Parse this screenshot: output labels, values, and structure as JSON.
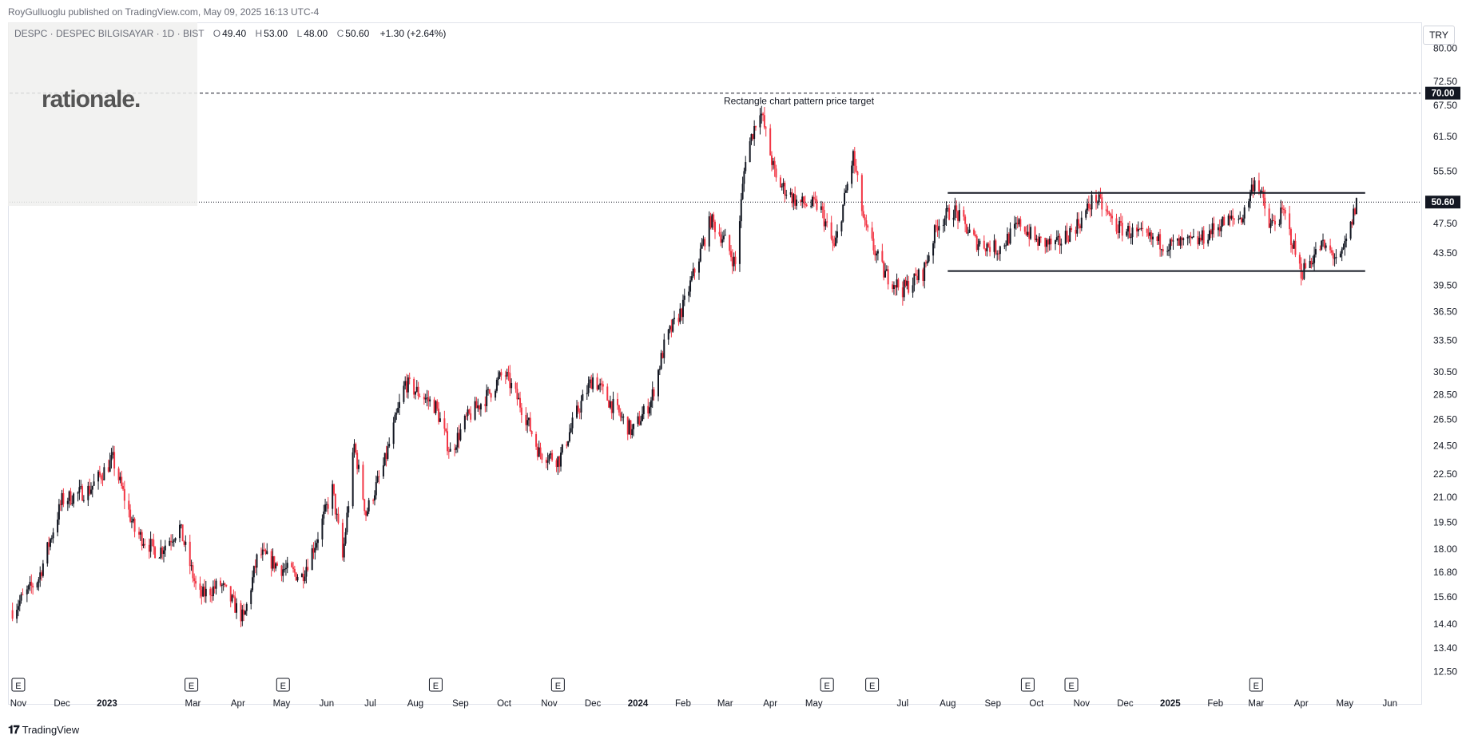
{
  "header": {
    "published": "RoyGulluoglu published on TradingView.com, May 09, 2025 16:13 UTC-4"
  },
  "legend": {
    "symbol": "DESPC · DESPEC BILGISAYAR · 1D · BIST",
    "open_label": "O",
    "open": "49.40",
    "high_label": "H",
    "high": "53.00",
    "low_label": "L",
    "low": "48.00",
    "close_label": "C",
    "close": "50.60",
    "change": "+1.30 (+2.64%)"
  },
  "watermark": {
    "logo_text": "rationale."
  },
  "currency": "TRY",
  "footer": {
    "brand": "TradingView",
    "icon": "tradingview-logo-icon"
  },
  "colors": {
    "up": "#131722",
    "down": "#f23645",
    "grid_line": "#131722",
    "price_tag": "#131722"
  },
  "chart_data": {
    "type": "candlestick",
    "scale": "log",
    "y_ticks": [
      80.0,
      72.5,
      67.5,
      61.5,
      55.5,
      50.6,
      47.5,
      43.5,
      39.5,
      36.5,
      33.5,
      30.5,
      28.5,
      26.5,
      24.5,
      22.5,
      21.0,
      19.5,
      18.0,
      16.8,
      15.6,
      14.4,
      13.4,
      12.5
    ],
    "y_tick_labels": [
      "80.00",
      "72.50",
      "67.50",
      "61.50",
      "55.50",
      "50.60",
      "47.50",
      "43.50",
      "39.50",
      "36.50",
      "33.50",
      "30.50",
      "28.50",
      "26.50",
      "24.50",
      "22.50",
      "21.00",
      "19.50",
      "18.00",
      "16.80",
      "15.60",
      "14.40",
      "13.40",
      "12.50"
    ],
    "x_labels": [
      {
        "label": "Nov",
        "date": "2022-11-01",
        "bold": false
      },
      {
        "label": "Dec",
        "date": "2022-12-01",
        "bold": false
      },
      {
        "label": "2023",
        "date": "2023-01-01",
        "bold": true
      },
      {
        "label": "Mar",
        "date": "2023-03-01",
        "bold": false
      },
      {
        "label": "Apr",
        "date": "2023-04-01",
        "bold": false
      },
      {
        "label": "May",
        "date": "2023-05-01",
        "bold": false
      },
      {
        "label": "Jun",
        "date": "2023-06-01",
        "bold": false
      },
      {
        "label": "Jul",
        "date": "2023-07-01",
        "bold": false
      },
      {
        "label": "Aug",
        "date": "2023-08-01",
        "bold": false
      },
      {
        "label": "Sep",
        "date": "2023-09-01",
        "bold": false
      },
      {
        "label": "Oct",
        "date": "2023-10-01",
        "bold": false
      },
      {
        "label": "Nov",
        "date": "2023-11-01",
        "bold": false
      },
      {
        "label": "Dec",
        "date": "2023-12-01",
        "bold": false
      },
      {
        "label": "2024",
        "date": "2024-01-01",
        "bold": true
      },
      {
        "label": "Feb",
        "date": "2024-02-01",
        "bold": false
      },
      {
        "label": "Mar",
        "date": "2024-03-01",
        "bold": false
      },
      {
        "label": "Apr",
        "date": "2024-04-01",
        "bold": false
      },
      {
        "label": "May",
        "date": "2024-05-01",
        "bold": false
      },
      {
        "label": "Jul",
        "date": "2024-07-01",
        "bold": false
      },
      {
        "label": "Aug",
        "date": "2024-08-01",
        "bold": false
      },
      {
        "label": "Sep",
        "date": "2024-09-01",
        "bold": false
      },
      {
        "label": "Oct",
        "date": "2024-10-01",
        "bold": false
      },
      {
        "label": "Nov",
        "date": "2024-11-01",
        "bold": false
      },
      {
        "label": "Dec",
        "date": "2024-12-01",
        "bold": false
      },
      {
        "label": "2025",
        "date": "2025-01-01",
        "bold": true
      },
      {
        "label": "Feb",
        "date": "2025-02-01",
        "bold": false
      },
      {
        "label": "Mar",
        "date": "2025-03-01",
        "bold": false
      },
      {
        "label": "Apr",
        "date": "2025-04-01",
        "bold": false
      },
      {
        "label": "May",
        "date": "2025-05-01",
        "bold": false
      },
      {
        "label": "Jun",
        "date": "2025-06-01",
        "bold": false
      }
    ],
    "earnings_markers": {
      "label": "E",
      "dates": [
        "2022-11-01",
        "2023-02-28",
        "2023-05-02",
        "2023-08-15",
        "2023-11-07",
        "2024-05-10",
        "2024-06-10",
        "2024-09-25",
        "2024-10-25",
        "2025-03-01"
      ]
    },
    "price_path": [
      [
        "2022-10-28",
        15.0
      ],
      [
        "2022-11-15",
        16.5
      ],
      [
        "2022-12-01",
        20.8
      ],
      [
        "2022-12-20",
        21.5
      ],
      [
        "2023-01-05",
        23.5
      ],
      [
        "2023-01-20",
        19.0
      ],
      [
        "2023-02-05",
        17.8
      ],
      [
        "2023-02-20",
        19.2
      ],
      [
        "2023-03-05",
        15.6
      ],
      [
        "2023-03-20",
        16.2
      ],
      [
        "2023-04-05",
        14.6
      ],
      [
        "2023-04-15",
        17.8
      ],
      [
        "2023-05-01",
        17.0
      ],
      [
        "2023-05-15",
        16.6
      ],
      [
        "2023-05-25",
        18.5
      ],
      [
        "2023-06-05",
        21.5
      ],
      [
        "2023-06-12",
        17.5
      ],
      [
        "2023-06-20",
        24.5
      ],
      [
        "2023-06-28",
        20.0
      ],
      [
        "2023-07-10",
        23.0
      ],
      [
        "2023-07-25",
        29.5
      ],
      [
        "2023-08-05",
        28.5
      ],
      [
        "2023-08-15",
        27.5
      ],
      [
        "2023-08-25",
        24.0
      ],
      [
        "2023-09-05",
        26.5
      ],
      [
        "2023-09-20",
        28.5
      ],
      [
        "2023-10-01",
        30.5
      ],
      [
        "2023-10-15",
        27.0
      ],
      [
        "2023-10-25",
        24.0
      ],
      [
        "2023-11-08",
        23.5
      ],
      [
        "2023-11-20",
        27.0
      ],
      [
        "2023-12-01",
        30.0
      ],
      [
        "2023-12-15",
        27.5
      ],
      [
        "2023-12-28",
        25.5
      ],
      [
        "2024-01-10",
        28.0
      ],
      [
        "2024-01-20",
        33.5
      ],
      [
        "2024-02-01",
        37.0
      ],
      [
        "2024-02-12",
        43.0
      ],
      [
        "2024-02-20",
        48.0
      ],
      [
        "2024-03-01",
        45.0
      ],
      [
        "2024-03-08",
        42.0
      ],
      [
        "2024-03-15",
        58.0
      ],
      [
        "2024-03-25",
        67.0
      ],
      [
        "2024-04-05",
        54.0
      ],
      [
        "2024-04-20",
        50.5
      ],
      [
        "2024-05-05",
        50.0
      ],
      [
        "2024-05-15",
        44.0
      ],
      [
        "2024-05-28",
        58.0
      ],
      [
        "2024-06-05",
        47.0
      ],
      [
        "2024-06-18",
        41.0
      ],
      [
        "2024-07-01",
        39.0
      ],
      [
        "2024-07-15",
        41.0
      ],
      [
        "2024-07-25",
        47.5
      ],
      [
        "2024-08-05",
        49.5
      ],
      [
        "2024-08-20",
        45.0
      ],
      [
        "2024-09-05",
        44.0
      ],
      [
        "2024-09-20",
        47.5
      ],
      [
        "2024-10-01",
        45.0
      ],
      [
        "2024-10-15",
        44.5
      ],
      [
        "2024-11-01",
        48.0
      ],
      [
        "2024-11-10",
        51.5
      ],
      [
        "2024-11-25",
        47.0
      ],
      [
        "2024-12-15",
        45.5
      ],
      [
        "2025-01-01",
        44.5
      ],
      [
        "2025-01-20",
        45.0
      ],
      [
        "2025-02-05",
        47.5
      ],
      [
        "2025-02-20",
        48.5
      ],
      [
        "2025-03-01",
        55.0
      ],
      [
        "2025-03-10",
        47.0
      ],
      [
        "2025-03-20",
        49.0
      ],
      [
        "2025-04-01",
        41.0
      ],
      [
        "2025-04-15",
        44.5
      ],
      [
        "2025-04-28",
        42.5
      ],
      [
        "2025-05-05",
        47.0
      ],
      [
        "2025-05-09",
        50.6
      ]
    ],
    "annotations": {
      "target_line": {
        "value": 70.0,
        "label": "Rectangle chart pattern price target",
        "price_label": "70.00"
      },
      "current_price_line": {
        "value": 50.6,
        "price_label": "50.60"
      },
      "rectangle": {
        "start": "2024-08-01",
        "end": "2025-05-15",
        "top": 52.0,
        "bottom": 41.2
      }
    }
  }
}
